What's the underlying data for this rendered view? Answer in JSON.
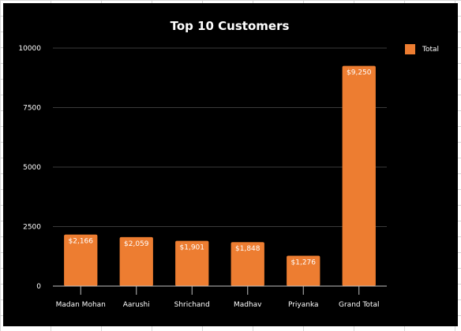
{
  "chart_data": {
    "type": "bar",
    "title": "Top 10 Customers",
    "xlabel": "",
    "ylabel": "",
    "ylim": [
      0,
      10000
    ],
    "yticks": [
      "0",
      "2500",
      "5000",
      "7500",
      "10000"
    ],
    "grid": true,
    "legend_position": "top-right",
    "categories": [
      "Madan Mohan",
      "Aarushi",
      "Shrichand",
      "Madhav",
      "Priyanka",
      "Grand Total"
    ],
    "series": [
      {
        "name": "Total",
        "color": "#ED7D31",
        "values": [
          2166,
          2059,
          1901,
          1848,
          1276,
          9250
        ],
        "labels": [
          "$2,166",
          "$2,059",
          "$1,901",
          "$1,848",
          "$1,276",
          "$9,250"
        ]
      }
    ]
  }
}
